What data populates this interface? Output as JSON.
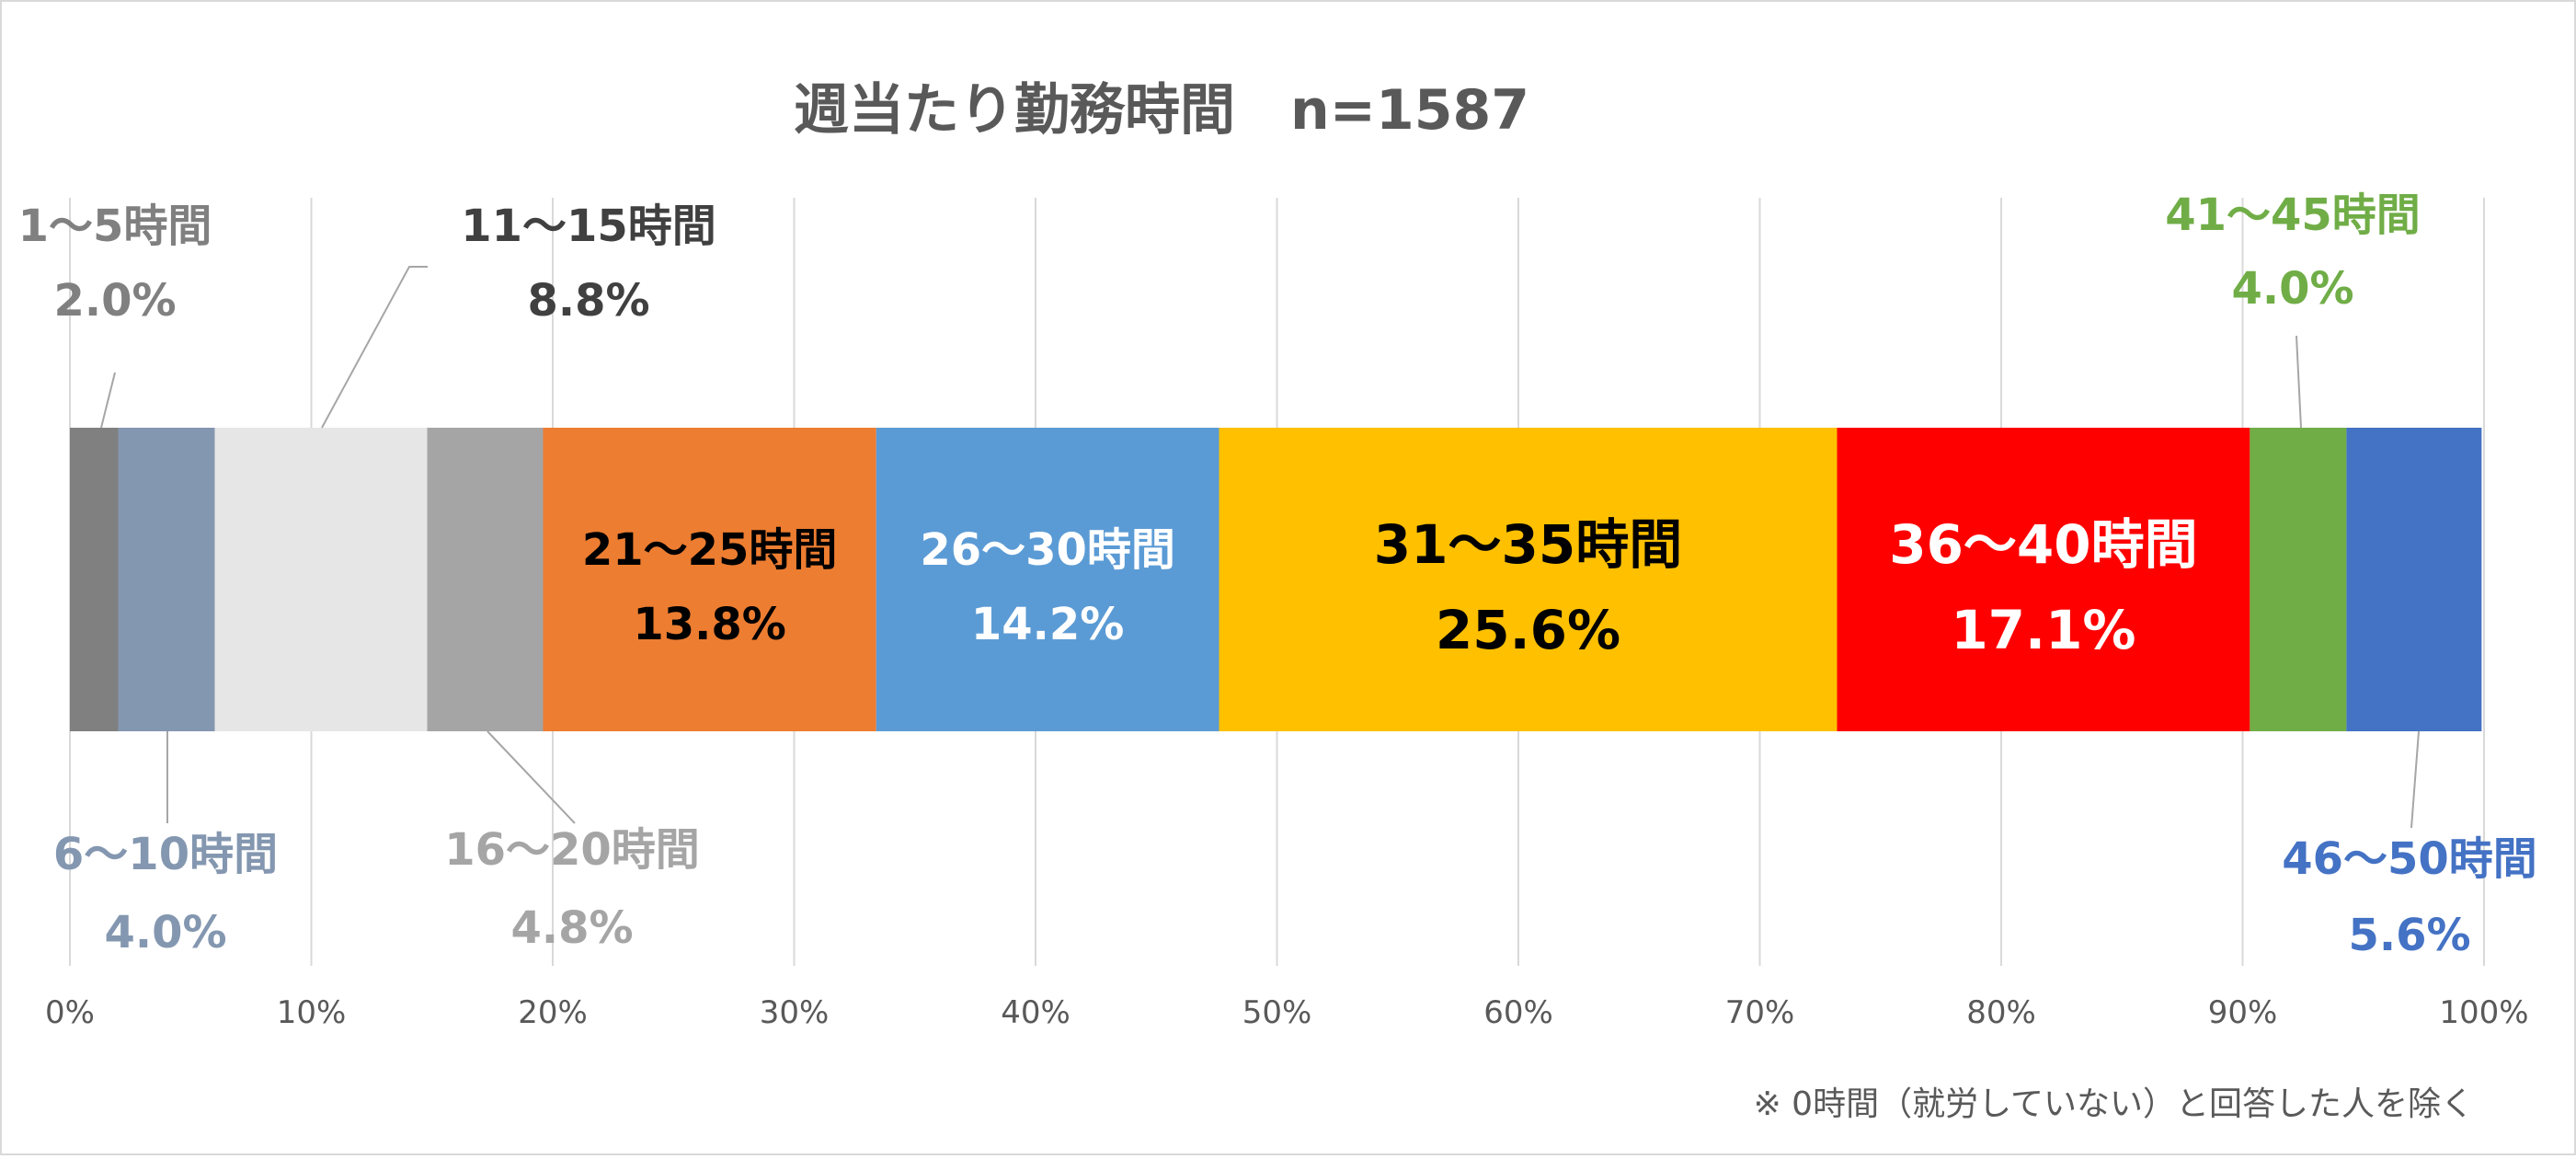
{
  "chart_data": {
    "type": "bar",
    "orientation": "horizontal",
    "stacked": true,
    "title": "週当たり勤務時間　n=1587",
    "xlim": [
      0,
      100
    ],
    "x_ticks": [
      "0%",
      "10%",
      "20%",
      "30%",
      "40%",
      "50%",
      "60%",
      "70%",
      "80%",
      "90%",
      "100%"
    ],
    "grid": true,
    "legend": "none",
    "footnote": "※ 0時間（就労していない）と回答した人を除く",
    "series": [
      {
        "name": "1～5時間",
        "value": 2.0,
        "label_value": "2.0%",
        "color": "#808080",
        "label_color": "#808080",
        "label_position": "above-outside"
      },
      {
        "name": "6～10時間",
        "value": 4.0,
        "label_value": "4.0%",
        "color": "#8497b0",
        "label_color": "#8497b0",
        "label_position": "below-outside"
      },
      {
        "name": "11～15時間",
        "value": 8.8,
        "label_value": "8.8%",
        "color": "#e7e6e6",
        "label_color": "#404040",
        "label_position": "above-outside"
      },
      {
        "name": "16～20時間",
        "value": 4.8,
        "label_value": "4.8%",
        "color": "#a5a5a5",
        "label_color": "#a5a5a5",
        "label_position": "below-outside"
      },
      {
        "name": "21～25時間",
        "value": 13.8,
        "label_value": "13.8%",
        "color": "#ed7d31",
        "label_color": "#000000",
        "label_position": "inside"
      },
      {
        "name": "26～30時間",
        "value": 14.2,
        "label_value": "14.2%",
        "color": "#5b9bd5",
        "label_color": "#ffffff",
        "label_position": "inside"
      },
      {
        "name": "31～35時間",
        "value": 25.6,
        "label_value": "25.6%",
        "color": "#ffc000",
        "label_color": "#000000",
        "label_position": "inside"
      },
      {
        "name": "36～40時間",
        "value": 17.1,
        "label_value": "17.1%",
        "color": "#ff0000",
        "label_color": "#ffffff",
        "label_position": "inside"
      },
      {
        "name": "41～45時間",
        "value": 4.0,
        "label_value": "4.0%",
        "color": "#70ad47",
        "label_color": "#70ad47",
        "label_position": "above-outside"
      },
      {
        "name": "46～50時間",
        "value": 5.6,
        "label_value": "5.6%",
        "color": "#4472c4",
        "label_color": "#4472c4",
        "label_position": "below-outside"
      }
    ]
  }
}
